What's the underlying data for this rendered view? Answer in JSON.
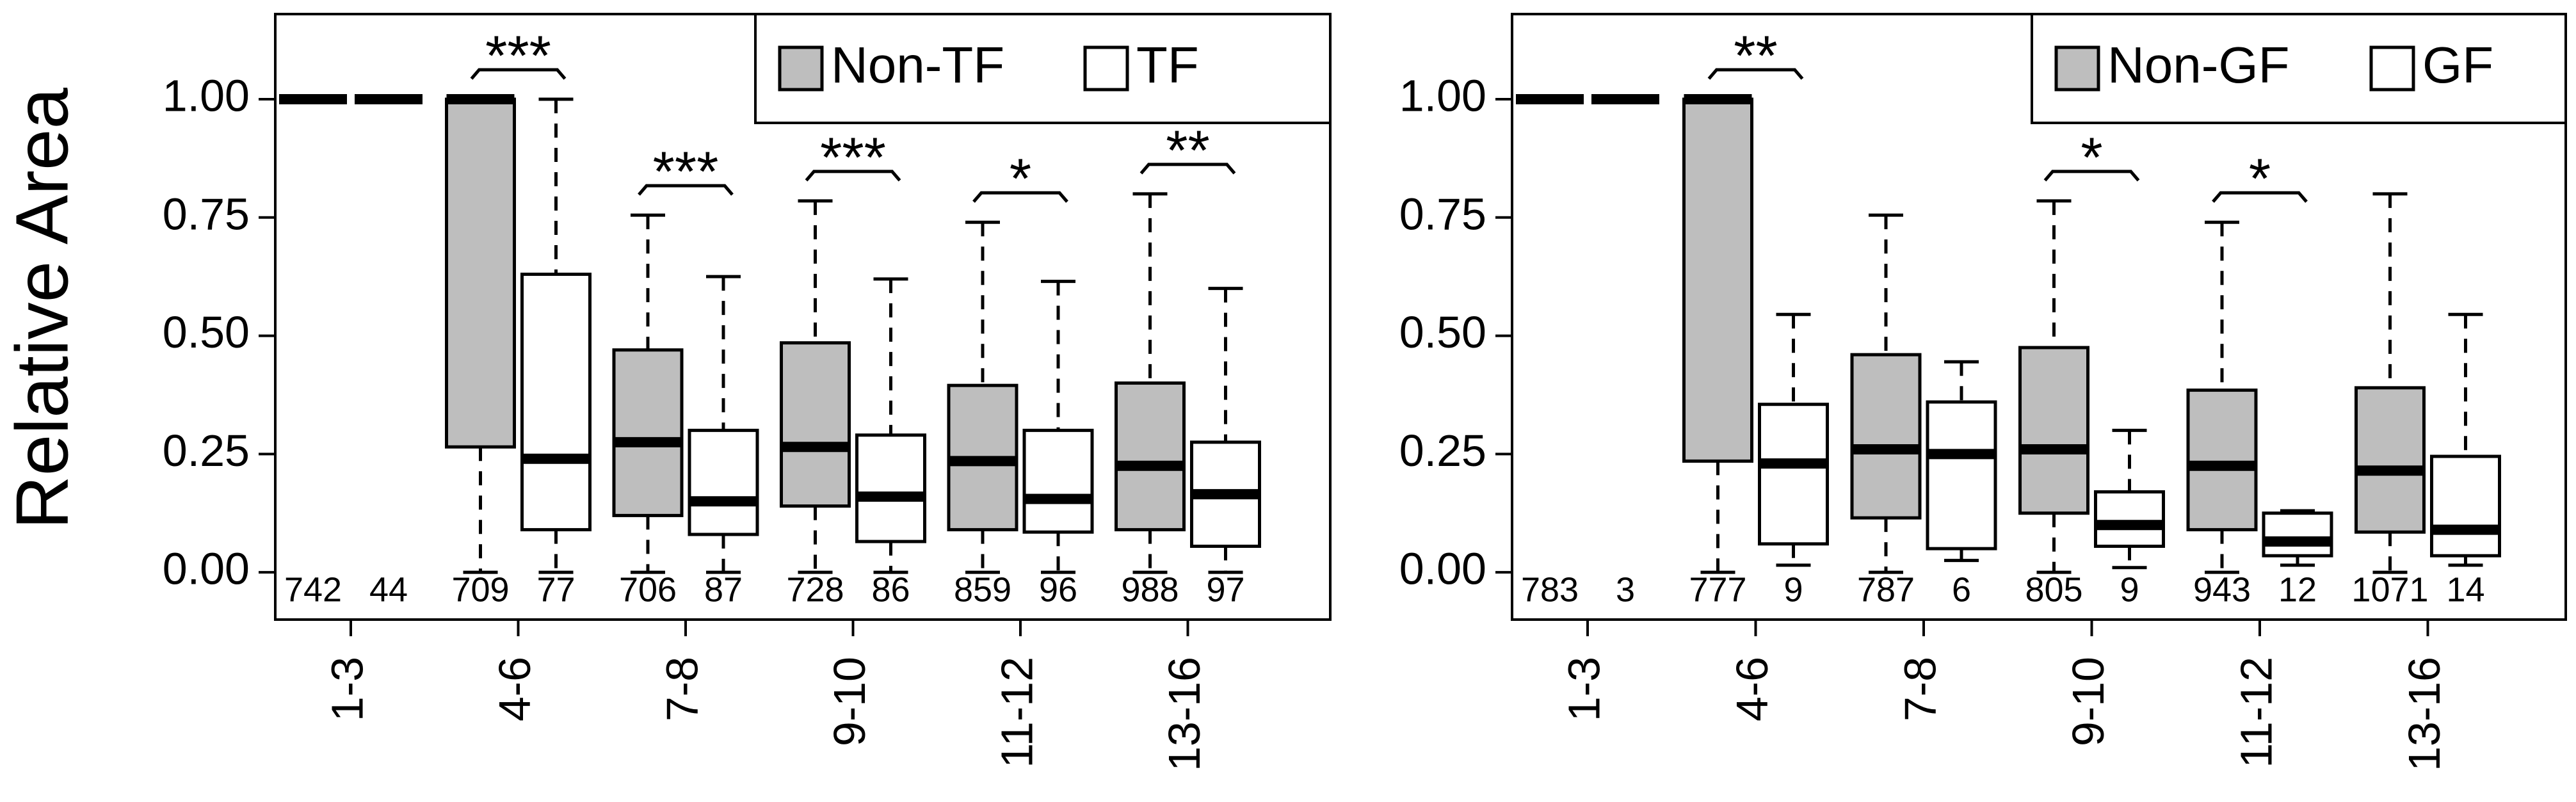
{
  "ylabel": "Relative Area",
  "chart_data": [
    {
      "type": "box",
      "ylabel": "Relative Area",
      "ylim": [
        -0.1,
        1.18
      ],
      "yticks": [
        "0.00",
        "0.25",
        "0.50",
        "0.75",
        "1.00"
      ],
      "ytick_values": [
        0,
        0.25,
        0.5,
        0.75,
        1.0
      ],
      "categories": [
        "1-3",
        "4-6",
        "7-8",
        "9-10",
        "11-12",
        "13-16"
      ],
      "legend": {
        "position": "top-right",
        "items": [
          {
            "name": "Non-TF",
            "fill": "#bebebe"
          },
          {
            "name": "TF",
            "fill": "#ffffff"
          }
        ]
      },
      "series": [
        {
          "name": "Non-TF",
          "color": "#bebebe",
          "n": [
            "742",
            "709",
            "706",
            "728",
            "859",
            "988"
          ],
          "boxes": [
            {
              "lw": 1.0,
              "q1": 1.0,
              "med": 1.0,
              "q3": 1.0,
              "uw": 1.0
            },
            {
              "lw": 0.0,
              "q1": 0.265,
              "med": 1.0,
              "q3": 1.0,
              "uw": 1.0
            },
            {
              "lw": 0.0,
              "q1": 0.12,
              "med": 0.275,
              "q3": 0.47,
              "uw": 0.755
            },
            {
              "lw": 0.0,
              "q1": 0.14,
              "med": 0.265,
              "q3": 0.485,
              "uw": 0.785
            },
            {
              "lw": 0.0,
              "q1": 0.09,
              "med": 0.235,
              "q3": 0.395,
              "uw": 0.74
            },
            {
              "lw": 0.0,
              "q1": 0.09,
              "med": 0.225,
              "q3": 0.4,
              "uw": 0.8
            }
          ]
        },
        {
          "name": "TF",
          "color": "#ffffff",
          "n": [
            "44",
            "77",
            "87",
            "86",
            "96",
            "97"
          ],
          "boxes": [
            {
              "lw": 1.0,
              "q1": 1.0,
              "med": 1.0,
              "q3": 1.0,
              "uw": 1.0
            },
            {
              "lw": 0.0,
              "q1": 0.09,
              "med": 0.24,
              "q3": 0.63,
              "uw": 1.0
            },
            {
              "lw": 0.0,
              "q1": 0.08,
              "med": 0.15,
              "q3": 0.3,
              "uw": 0.625
            },
            {
              "lw": 0.0,
              "q1": 0.065,
              "med": 0.16,
              "q3": 0.29,
              "uw": 0.62
            },
            {
              "lw": 0.0,
              "q1": 0.085,
              "med": 0.155,
              "q3": 0.3,
              "uw": 0.615
            },
            {
              "lw": 0.0,
              "q1": 0.055,
              "med": 0.165,
              "q3": 0.275,
              "uw": 0.6
            }
          ]
        }
      ],
      "significance": [
        {
          "category": "4-6",
          "stars": "***"
        },
        {
          "category": "7-8",
          "stars": "***"
        },
        {
          "category": "9-10",
          "stars": "***"
        },
        {
          "category": "11-12",
          "stars": "*"
        },
        {
          "category": "13-16",
          "stars": "**"
        }
      ]
    },
    {
      "type": "box",
      "ylabel": "",
      "ylim": [
        -0.1,
        1.18
      ],
      "yticks": [
        "0.00",
        "0.25",
        "0.50",
        "0.75",
        "1.00"
      ],
      "ytick_values": [
        0,
        0.25,
        0.5,
        0.75,
        1.0
      ],
      "categories": [
        "1-3",
        "4-6",
        "7-8",
        "9-10",
        "11-12",
        "13-16"
      ],
      "legend": {
        "position": "top-right",
        "items": [
          {
            "name": "Non-GF",
            "fill": "#bebebe"
          },
          {
            "name": "GF",
            "fill": "#ffffff"
          }
        ]
      },
      "series": [
        {
          "name": "Non-GF",
          "color": "#bebebe",
          "n": [
            "783",
            "777",
            "787",
            "805",
            "943",
            "1071"
          ],
          "boxes": [
            {
              "lw": 1.0,
              "q1": 1.0,
              "med": 1.0,
              "q3": 1.0,
              "uw": 1.0
            },
            {
              "lw": 0.0,
              "q1": 0.235,
              "med": 1.0,
              "q3": 1.0,
              "uw": 1.0
            },
            {
              "lw": 0.0,
              "q1": 0.115,
              "med": 0.26,
              "q3": 0.46,
              "uw": 0.755
            },
            {
              "lw": 0.0,
              "q1": 0.125,
              "med": 0.26,
              "q3": 0.475,
              "uw": 0.785
            },
            {
              "lw": 0.0,
              "q1": 0.09,
              "med": 0.225,
              "q3": 0.385,
              "uw": 0.74
            },
            {
              "lw": 0.0,
              "q1": 0.085,
              "med": 0.215,
              "q3": 0.39,
              "uw": 0.8
            }
          ]
        },
        {
          "name": "GF",
          "color": "#ffffff",
          "n": [
            "3",
            "9",
            "6",
            "9",
            "12",
            "14"
          ],
          "boxes": [
            {
              "lw": 1.0,
              "q1": 1.0,
              "med": 1.0,
              "q3": 1.0,
              "uw": 1.0
            },
            {
              "lw": 0.015,
              "q1": 0.06,
              "med": 0.23,
              "q3": 0.355,
              "uw": 0.545
            },
            {
              "lw": 0.025,
              "q1": 0.05,
              "med": 0.25,
              "q3": 0.36,
              "uw": 0.445
            },
            {
              "lw": 0.01,
              "q1": 0.055,
              "med": 0.1,
              "q3": 0.17,
              "uw": 0.3
            },
            {
              "lw": 0.015,
              "q1": 0.035,
              "med": 0.065,
              "q3": 0.125,
              "uw": 0.13
            },
            {
              "lw": 0.015,
              "q1": 0.035,
              "med": 0.09,
              "q3": 0.245,
              "uw": 0.545
            }
          ]
        }
      ],
      "significance": [
        {
          "category": "4-6",
          "stars": "**"
        },
        {
          "category": "9-10",
          "stars": "*"
        },
        {
          "category": "11-12",
          "stars": "*"
        }
      ]
    }
  ]
}
